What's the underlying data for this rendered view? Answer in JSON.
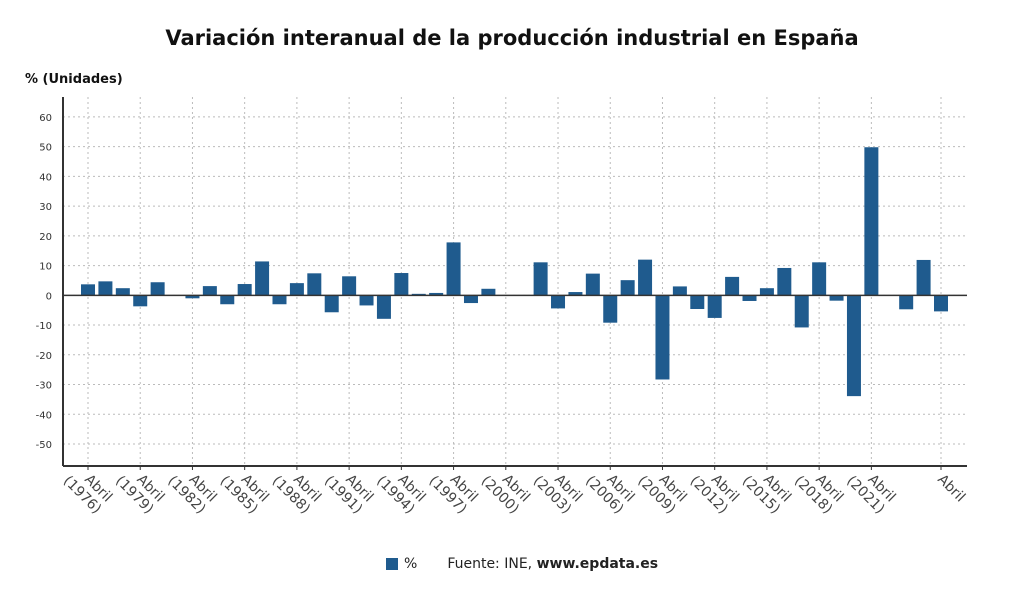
{
  "chart_data": {
    "type": "bar",
    "title": "Variación interanual de la producción industrial en España",
    "ylabel": "% (Unidades)",
    "xlabel": "",
    "ylim": [
      -57.4,
      66.7
    ],
    "yticks": [
      60,
      50,
      40,
      30,
      20,
      10,
      0,
      -10,
      -20,
      -30,
      -40,
      -50
    ],
    "grid": true,
    "color": "#1f5b8e",
    "years": [
      1976,
      1977,
      1978,
      1979,
      1980,
      1981,
      1982,
      1983,
      1984,
      1985,
      1986,
      1987,
      1988,
      1989,
      1990,
      1991,
      1992,
      1993,
      1994,
      1995,
      1996,
      1997,
      1998,
      1999,
      2000,
      2001,
      2002,
      2003,
      2004,
      2005,
      2006,
      2007,
      2008,
      2009,
      2010,
      2011,
      2012,
      2013,
      2014,
      2015,
      2016,
      2017,
      2018,
      2019,
      2020,
      2021,
      2022,
      2023,
      2024,
      2025
    ],
    "values": [
      3.7,
      4.7,
      2.4,
      -3.7,
      4.4,
      0,
      -1.0,
      3.1,
      -3.0,
      3.8,
      11.4,
      -3.0,
      4.1,
      7.4,
      -5.7,
      6.4,
      -3.4,
      -7.9,
      7.5,
      0.5,
      0.8,
      17.8,
      -2.6,
      2.2,
      0,
      0,
      11.1,
      -4.4,
      1.1,
      7.3,
      -9.2,
      5.1,
      12.0,
      -28.3,
      3.0,
      -4.6,
      -7.6,
      6.2,
      -1.9,
      2.4,
      9.2,
      -10.8,
      11.1,
      -1.8,
      -33.9,
      49.8,
      0,
      -4.7,
      11.9,
      -5.4
    ],
    "xtick_labels": [
      {
        "year": 1976,
        "line1": "Abril",
        "line2": "(1976)"
      },
      {
        "year": 1979,
        "line1": "Abril",
        "line2": "(1979)"
      },
      {
        "year": 1982,
        "line1": "Abril",
        "line2": "(1982)"
      },
      {
        "year": 1985,
        "line1": "Abril",
        "line2": "(1985)"
      },
      {
        "year": 1988,
        "line1": "Abril",
        "line2": "(1988)"
      },
      {
        "year": 1991,
        "line1": "Abril",
        "line2": "(1991)"
      },
      {
        "year": 1994,
        "line1": "Abril",
        "line2": "(1994)"
      },
      {
        "year": 1997,
        "line1": "Abril",
        "line2": "(1997)"
      },
      {
        "year": 2000,
        "line1": "Abril",
        "line2": "(2000)"
      },
      {
        "year": 2003,
        "line1": "Abril",
        "line2": "(2003)"
      },
      {
        "year": 2006,
        "line1": "Abril",
        "line2": "(2006)"
      },
      {
        "year": 2009,
        "line1": "Abril",
        "line2": "(2009)"
      },
      {
        "year": 2012,
        "line1": "Abril",
        "line2": "(2012)"
      },
      {
        "year": 2015,
        "line1": "Abril",
        "line2": "(2015)"
      },
      {
        "year": 2018,
        "line1": "Abril",
        "line2": "(2018)"
      },
      {
        "year": 2021,
        "line1": "Abril",
        "line2": "(2021)"
      },
      {
        "year": 2025,
        "line1": "Abril",
        "line2": ""
      }
    ],
    "legend": [
      {
        "name": "%",
        "color": "#1f5b8e"
      }
    ],
    "legend_position": "bottom"
  },
  "footer": {
    "source_prefix": "Fuente: INE, ",
    "source_site": "www.epdata.es"
  }
}
